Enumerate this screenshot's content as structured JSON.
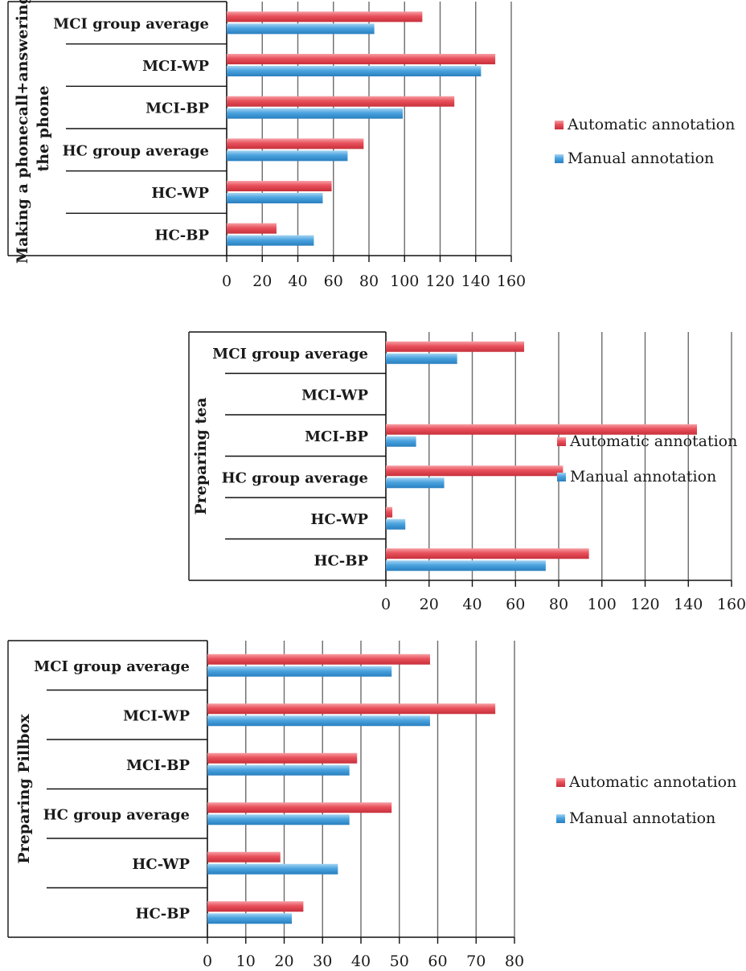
{
  "legend": {
    "automatic": "Automatic annotation",
    "manual": "Manual annotation"
  },
  "colors": {
    "automatic": "#e8505b",
    "manual": "#4aa3df",
    "gridline": "#6b6b6b",
    "axis": "#111111"
  },
  "chart_data": [
    {
      "type": "bar",
      "orientation": "horizontal",
      "title": "",
      "ylabel": "Making a phonecall+answering the phone",
      "categories": [
        "MCI group average",
        "MCI-WP",
        "MCI-BP",
        "HC group average",
        "HC-WP",
        "HC-BP"
      ],
      "series": [
        {
          "name": "Automatic annotation",
          "values": [
            110,
            151,
            128,
            77,
            59,
            28
          ]
        },
        {
          "name": "Manual annotation",
          "values": [
            83,
            143,
            99,
            68,
            54,
            49
          ]
        }
      ],
      "xlim": [
        0,
        160
      ],
      "xticks": [
        0,
        20,
        40,
        60,
        80,
        100,
        120,
        140,
        160
      ],
      "grid": true,
      "legend_position": "right"
    },
    {
      "type": "bar",
      "orientation": "horizontal",
      "title": "",
      "ylabel": "Preparing tea",
      "categories": [
        "MCI group average",
        "MCI-WP",
        "MCI-BP",
        "HC group average",
        "HC-WP",
        "HC-BP"
      ],
      "series": [
        {
          "name": "Automatic annotation",
          "values": [
            64,
            0,
            144,
            82,
            3,
            94
          ]
        },
        {
          "name": "Manual annotation",
          "values": [
            33,
            0,
            14,
            27,
            9,
            74
          ]
        }
      ],
      "xlim": [
        0,
        160
      ],
      "xticks": [
        0,
        20,
        40,
        60,
        80,
        100,
        120,
        140,
        160
      ],
      "grid": true,
      "legend_position": "right"
    },
    {
      "type": "bar",
      "orientation": "horizontal",
      "title": "",
      "ylabel": "Preparing Pillbox",
      "categories": [
        "MCI group average",
        "MCI-WP",
        "MCI-BP",
        "HC group average",
        "HC-WP",
        "HC-BP"
      ],
      "series": [
        {
          "name": "Automatic annotation",
          "values": [
            58,
            75,
            39,
            48,
            19,
            25
          ]
        },
        {
          "name": "Manual annotation",
          "values": [
            48,
            58,
            37,
            37,
            34,
            22
          ]
        }
      ],
      "xlim": [
        0,
        80
      ],
      "xticks": [
        0,
        10,
        20,
        30,
        40,
        50,
        60,
        70,
        80
      ],
      "grid": true,
      "legend_position": "right"
    }
  ]
}
